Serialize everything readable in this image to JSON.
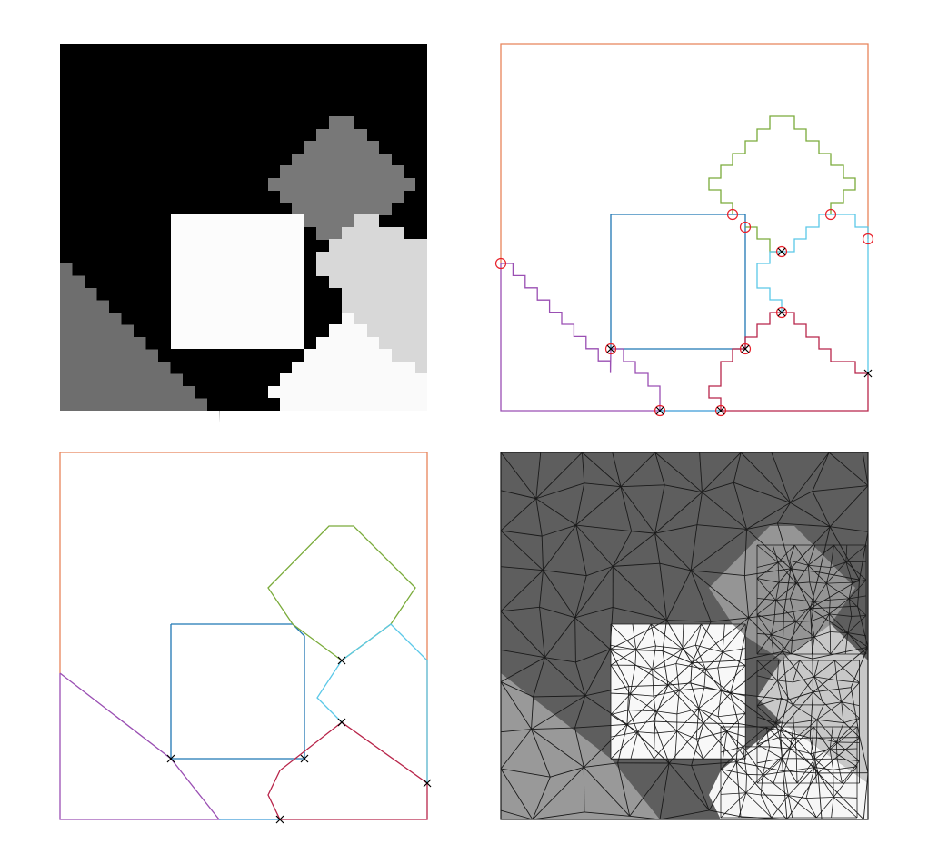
{
  "figure": {
    "panels": [
      {
        "id": "pixel-label-image",
        "kind": "segmented-raster",
        "region_colors": {
          "background": "#000000",
          "diamond": "#787878",
          "square": "#fcfcfc",
          "left_triangle": "#6e6e6e",
          "right_wedge": "#d8d8d8",
          "bottom_right": "#fafafa"
        }
      },
      {
        "id": "raw-staircase-boundaries",
        "kind": "pixel-boundary-curves",
        "markers": [
          "red-circle",
          "black-cross"
        ]
      },
      {
        "id": "simplified-boundaries",
        "kind": "smoothed-boundary-curves",
        "markers": [
          "black-cross"
        ]
      },
      {
        "id": "triangle-mesh",
        "kind": "conforming-triangulation",
        "region_colors": {
          "background": "#5e5e5e",
          "diamond": "#959595",
          "square": "#f8f8f8",
          "left_triangle": "#999999",
          "right_wedge": "#c8c8c8",
          "bottom_right": "#f6f6f6"
        }
      }
    ],
    "curve_colors": {
      "outer_top": "#e8845a",
      "square": "#1f77b4",
      "diamond": "#7aab3a",
      "right_wedge": "#5bc8e8",
      "bottom_right": "#b8254a",
      "left": "#9a4fb3",
      "bottom_join": "#3a9ad8",
      "circle_marker": "#e8202a",
      "cross_marker": "#000000",
      "mesh_edge": "#1a1a1a"
    }
  }
}
